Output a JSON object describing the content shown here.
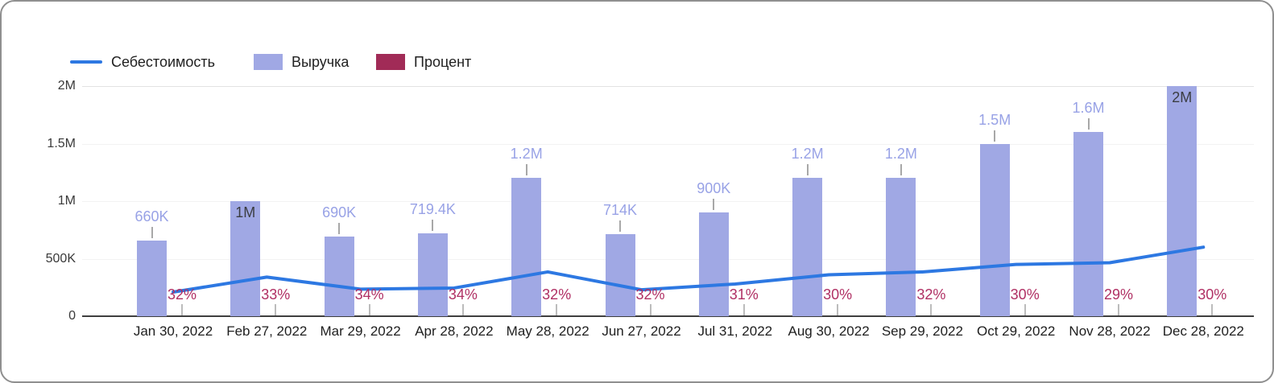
{
  "chart_data": {
    "type": "combo-bar-line",
    "title": "",
    "categories": [
      "Jan 30, 2022",
      "Feb 27, 2022",
      "Mar 29, 2022",
      "Apr 28, 2022",
      "May 28, 2022",
      "Jun 27, 2022",
      "Jul 31, 2022",
      "Aug 30, 2022",
      "Sep 29, 2022",
      "Oct 29, 2022",
      "Nov 28, 2022",
      "Dec 28, 2022"
    ],
    "series": [
      {
        "name": "Себестоимость",
        "type": "line",
        "color": "#2d78e2",
        "values": [
          210000,
          340000,
          235000,
          245000,
          385000,
          230000,
          280000,
          360000,
          385000,
          450000,
          465000,
          600000
        ]
      },
      {
        "name": "Выручка",
        "type": "bar",
        "color": "#a0a8e4",
        "values": [
          660000,
          1000000,
          690000,
          719400,
          1200000,
          714000,
          900000,
          1200000,
          1200000,
          1500000,
          1600000,
          2000000
        ],
        "labels": [
          "660K",
          "1M",
          "690K",
          "719.4K",
          "1.2M",
          "714K",
          "900K",
          "1.2M",
          "1.2M",
          "1.5M",
          "1.6M",
          "2M"
        ],
        "label_inside": [
          false,
          true,
          false,
          false,
          false,
          false,
          false,
          false,
          false,
          false,
          false,
          true
        ],
        "label_color_outside": "#98a2e6",
        "label_color_inside": "#3b3d42"
      },
      {
        "name": "Процент",
        "type": "bar",
        "color": "#a12b57",
        "values": [
          0.32,
          0.33,
          0.34,
          0.34,
          0.32,
          0.32,
          0.31,
          0.3,
          0.32,
          0.3,
          0.29,
          0.3
        ],
        "labels": [
          "32%",
          "33%",
          "34%",
          "34%",
          "32%",
          "32%",
          "31%",
          "30%",
          "32%",
          "30%",
          "29%",
          "30%"
        ],
        "label_color": "#b03064"
      }
    ],
    "y_axis": {
      "ticks": [
        "0",
        "500K",
        "1M",
        "1.5M",
        "2M"
      ],
      "tick_values": [
        0,
        500000,
        1000000,
        1500000,
        2000000
      ],
      "max": 2000000
    },
    "x_axis": {
      "label": ""
    },
    "grid": true,
    "legend_position": "top"
  }
}
